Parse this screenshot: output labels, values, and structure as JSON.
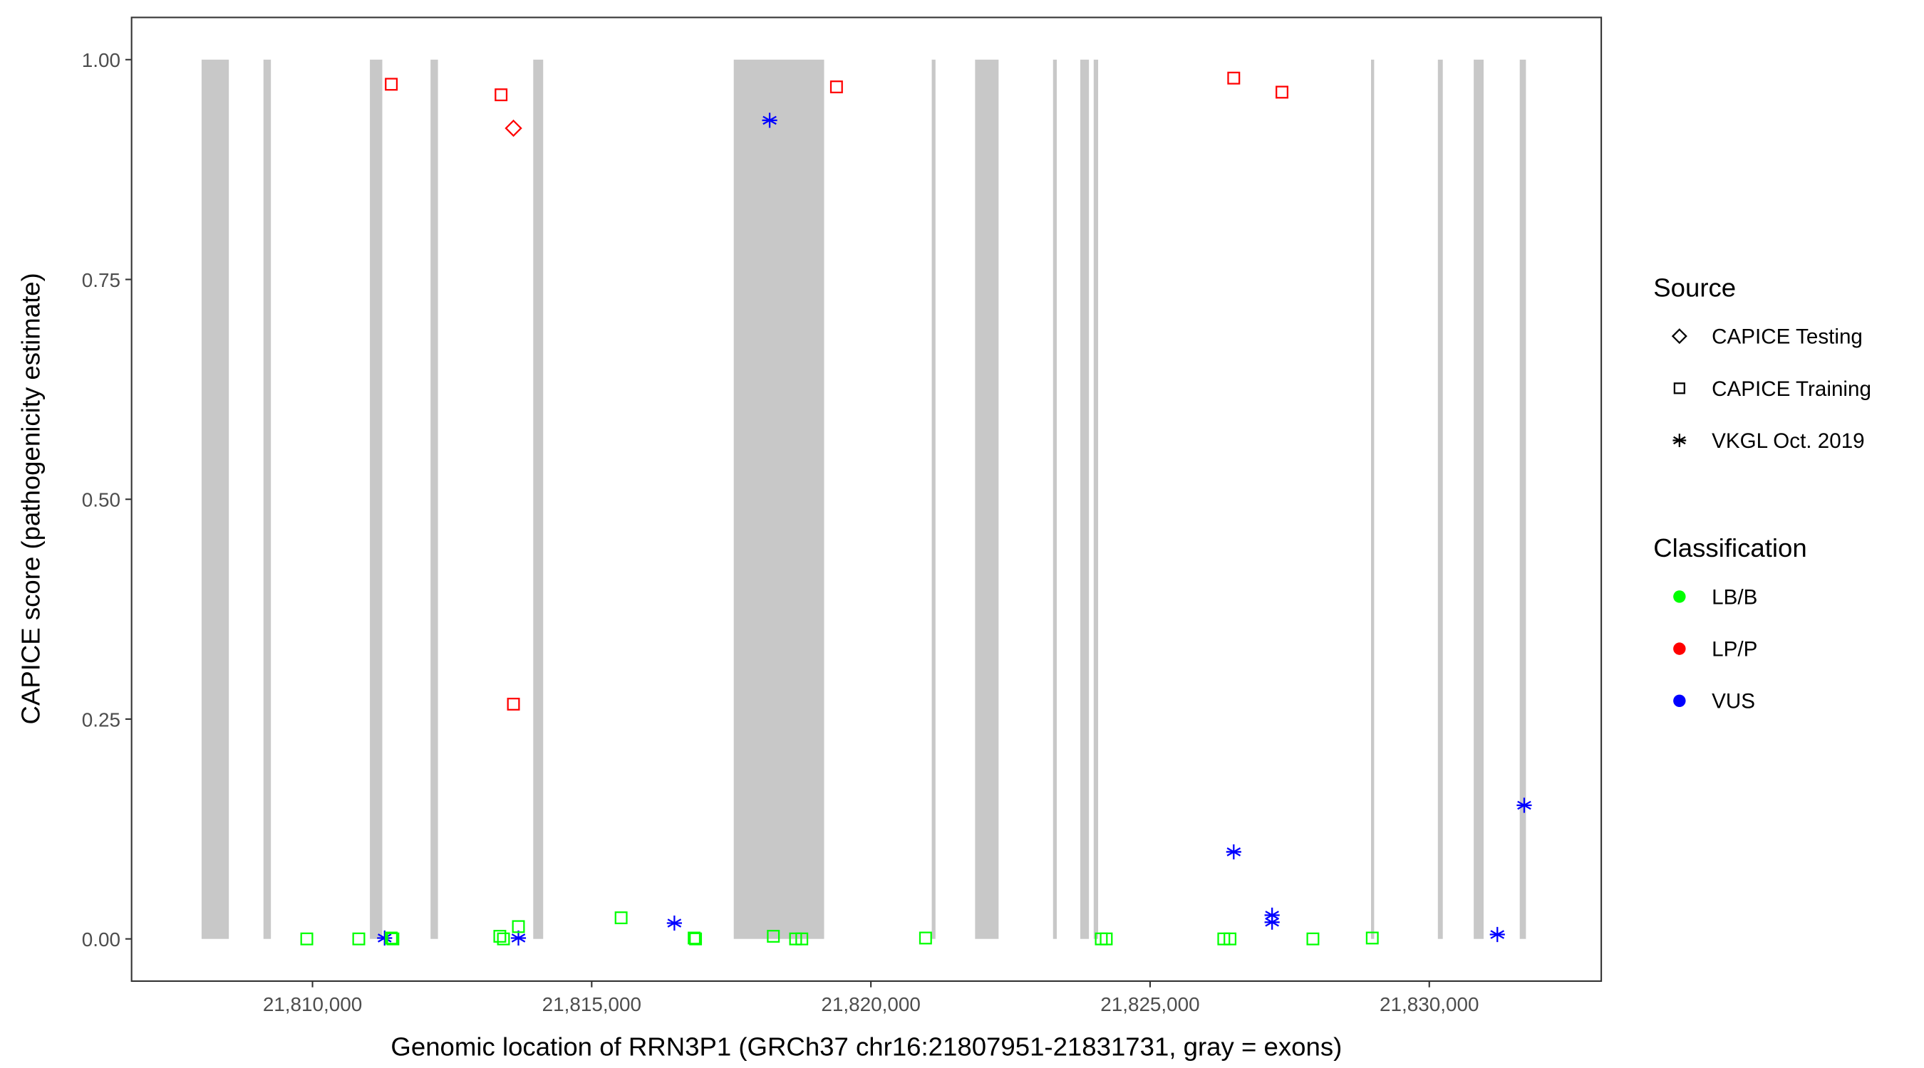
{
  "chart_data": {
    "type": "scatter",
    "xlabel": "Genomic location of RRN3P1 (GRCh37 chr16:21807951-21831731, gray = exons)",
    "ylabel": "CAPICE score (pathogenicity estimate)",
    "xlim": [
      21806760,
      21833080
    ],
    "ylim": [
      -0.048,
      1.048
    ],
    "x_ticks": [
      21810000,
      21815000,
      21820000,
      21825000,
      21830000
    ],
    "x_tick_labels": [
      "21,810,000",
      "21,815,000",
      "21,820,000",
      "21,825,000",
      "21,830,000"
    ],
    "y_ticks": [
      0,
      0.25,
      0.5,
      0.75,
      1.0
    ],
    "y_tick_labels": [
      "0.00",
      "0.25",
      "0.50",
      "0.75",
      "1.00"
    ],
    "grid": false,
    "exon_color": "#C8C8C8",
    "exons": [
      [
        21808014,
        21808502
      ],
      [
        21809122,
        21809255
      ],
      [
        21811028,
        21811250
      ],
      [
        21812114,
        21812247
      ],
      [
        21813953,
        21814131
      ],
      [
        21817544,
        21819162
      ],
      [
        21821090,
        21821157
      ],
      [
        21821866,
        21822287
      ],
      [
        21823262,
        21823329
      ],
      [
        21823750,
        21823905
      ],
      [
        21823990,
        21824070
      ],
      [
        21828957,
        21829001
      ],
      [
        21830154,
        21830242
      ],
      [
        21830796,
        21830973
      ],
      [
        21831620,
        21831731
      ]
    ],
    "legend_placement": "right",
    "legend": {
      "source": {
        "title": "Source",
        "items": [
          {
            "label": "CAPICE Testing",
            "shape": "diamond"
          },
          {
            "label": "CAPICE Training",
            "shape": "square"
          },
          {
            "label": "VKGL Oct. 2019",
            "shape": "asterisk"
          }
        ]
      },
      "classification": {
        "title": "Classification",
        "items": [
          {
            "label": "LB/B",
            "color": "#00FF00"
          },
          {
            "label": "LP/P",
            "color": "#FF0000"
          },
          {
            "label": "VUS",
            "color": "#0000FF"
          }
        ]
      }
    },
    "points": [
      {
        "x": 21811411,
        "y": 0.972,
        "source": "CAPICE Training",
        "class": "LP/P"
      },
      {
        "x": 21813377,
        "y": 0.96,
        "source": "CAPICE Training",
        "class": "LP/P"
      },
      {
        "x": 21813599,
        "y": 0.267,
        "source": "CAPICE Training",
        "class": "LP/P"
      },
      {
        "x": 21819384,
        "y": 0.969,
        "source": "CAPICE Training",
        "class": "LP/P"
      },
      {
        "x": 21826498,
        "y": 0.979,
        "source": "CAPICE Training",
        "class": "LP/P"
      },
      {
        "x": 21827362,
        "y": 0.963,
        "source": "CAPICE Training",
        "class": "LP/P"
      },
      {
        "x": 21813599,
        "y": 0.922,
        "source": "CAPICE Testing",
        "class": "LP/P"
      },
      {
        "x": 21818187,
        "y": 0.931,
        "source": "VKGL Oct. 2019",
        "class": "VUS"
      },
      {
        "x": 21811292,
        "y": 0.001,
        "source": "VKGL Oct. 2019",
        "class": "VUS"
      },
      {
        "x": 21813688,
        "y": 0.001,
        "source": "VKGL Oct. 2019",
        "class": "VUS"
      },
      {
        "x": 21816481,
        "y": 0.018,
        "source": "VKGL Oct. 2019",
        "class": "VUS"
      },
      {
        "x": 21826498,
        "y": 0.099,
        "source": "VKGL Oct. 2019",
        "class": "VUS"
      },
      {
        "x": 21827185,
        "y": 0.027,
        "source": "VKGL Oct. 2019",
        "class": "VUS"
      },
      {
        "x": 21827185,
        "y": 0.019,
        "source": "VKGL Oct. 2019",
        "class": "VUS"
      },
      {
        "x": 21831219,
        "y": 0.005,
        "source": "VKGL Oct. 2019",
        "class": "VUS"
      },
      {
        "x": 21831700,
        "y": 0.152,
        "source": "VKGL Oct. 2019",
        "class": "VUS"
      },
      {
        "x": 21809898,
        "y": 0.0,
        "source": "CAPICE Training",
        "class": "LB/B"
      },
      {
        "x": 21810829,
        "y": 0.0,
        "source": "CAPICE Training",
        "class": "LB/B"
      },
      {
        "x": 21811411,
        "y": 0.001,
        "source": "CAPICE Training",
        "class": "LB/B"
      },
      {
        "x": 21811440,
        "y": 0.0,
        "source": "CAPICE Training",
        "class": "LB/B"
      },
      {
        "x": 21813355,
        "y": 0.003,
        "source": "CAPICE Training",
        "class": "LB/B"
      },
      {
        "x": 21813420,
        "y": 0.0,
        "source": "CAPICE Training",
        "class": "LB/B"
      },
      {
        "x": 21813688,
        "y": 0.014,
        "source": "CAPICE Training",
        "class": "LB/B"
      },
      {
        "x": 21815527,
        "y": 0.024,
        "source": "CAPICE Training",
        "class": "LB/B"
      },
      {
        "x": 21816835,
        "y": 0.001,
        "source": "CAPICE Training",
        "class": "LB/B"
      },
      {
        "x": 21816860,
        "y": 0.0,
        "source": "CAPICE Training",
        "class": "LB/B"
      },
      {
        "x": 21818253,
        "y": 0.003,
        "source": "CAPICE Training",
        "class": "LB/B"
      },
      {
        "x": 21818652,
        "y": 0.0,
        "source": "CAPICE Training",
        "class": "LB/B"
      },
      {
        "x": 21818763,
        "y": 0.0,
        "source": "CAPICE Training",
        "class": "LB/B"
      },
      {
        "x": 21820979,
        "y": 0.001,
        "source": "CAPICE Training",
        "class": "LB/B"
      },
      {
        "x": 21824126,
        "y": 0.0,
        "source": "CAPICE Training",
        "class": "LB/B"
      },
      {
        "x": 21824215,
        "y": 0.0,
        "source": "CAPICE Training",
        "class": "LB/B"
      },
      {
        "x": 21826320,
        "y": 0.0,
        "source": "CAPICE Training",
        "class": "LB/B"
      },
      {
        "x": 21826431,
        "y": 0.0,
        "source": "CAPICE Training",
        "class": "LB/B"
      },
      {
        "x": 21827916,
        "y": 0.0,
        "source": "CAPICE Training",
        "class": "LB/B"
      },
      {
        "x": 21828979,
        "y": 0.001,
        "source": "CAPICE Training",
        "class": "LB/B"
      }
    ]
  }
}
